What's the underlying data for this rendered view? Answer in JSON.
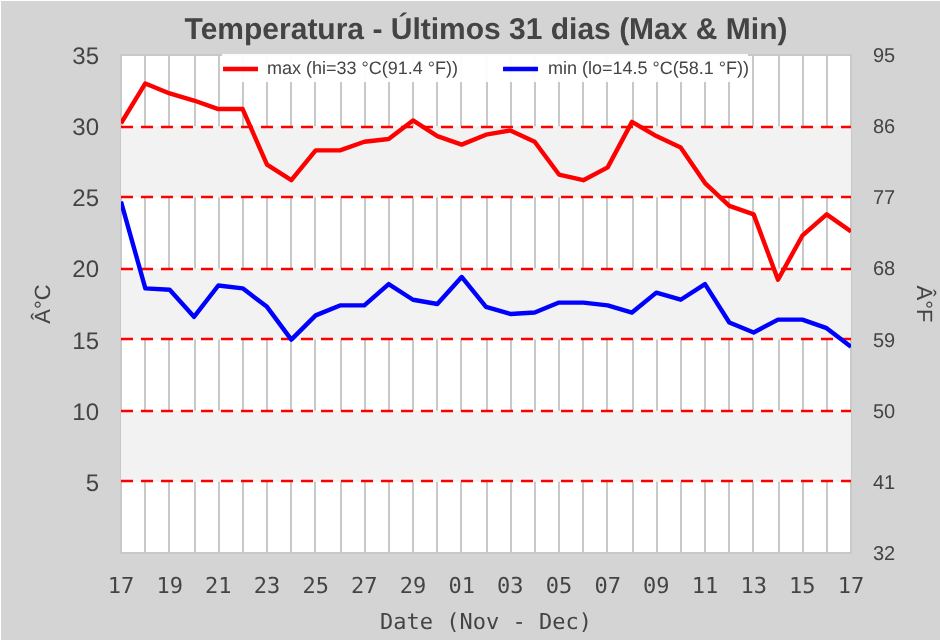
{
  "chart_data": {
    "type": "line",
    "title": "Temperatura - Últimos 31 dias (Max & Min)",
    "xlabel": "Date (Nov - Dec)",
    "ylabel": "Â°C",
    "y2label": "Â°F",
    "categories": [
      "17",
      null,
      "19",
      null,
      "21",
      null,
      "23",
      null,
      "25",
      null,
      "27",
      null,
      "29",
      null,
      "01",
      null,
      "03",
      null,
      "05",
      null,
      "07",
      null,
      "09",
      null,
      "11",
      null,
      "13",
      null,
      "15",
      null,
      "17"
    ],
    "series": [
      {
        "name": "max (hi=33 °C(91.4 °F))",
        "color": "#ff0000",
        "values": [
          30.2,
          33.0,
          32.3,
          31.8,
          31.2,
          31.2,
          27.3,
          26.2,
          28.3,
          28.3,
          28.9,
          29.1,
          30.4,
          29.3,
          28.7,
          29.4,
          29.7,
          28.9,
          26.6,
          26.2,
          27.1,
          30.3,
          29.3,
          28.5,
          26.0,
          24.4,
          23.8,
          19.2,
          22.3,
          23.8,
          22.6
        ]
      },
      {
        "name": "min (lo=14.5 °C(58.1 °F))",
        "color": "#0000ff",
        "values": [
          24.7,
          18.6,
          18.5,
          16.6,
          18.8,
          18.6,
          17.3,
          15.0,
          16.7,
          17.4,
          17.4,
          18.9,
          17.8,
          17.5,
          19.4,
          17.3,
          16.8,
          16.9,
          17.6,
          17.6,
          17.4,
          16.9,
          18.3,
          17.8,
          18.9,
          16.2,
          15.5,
          16.4,
          16.4,
          15.8,
          14.5
        ]
      }
    ],
    "ylim": [
      0,
      35
    ],
    "yticks": [
      5,
      10,
      15,
      20,
      25,
      30,
      35
    ],
    "y2lim": [
      32,
      95
    ],
    "y2ticks": [
      32,
      41,
      50,
      59,
      68,
      77,
      86,
      95
    ],
    "grid": true,
    "legend": "top",
    "marker": "none",
    "line_style": "solid"
  }
}
